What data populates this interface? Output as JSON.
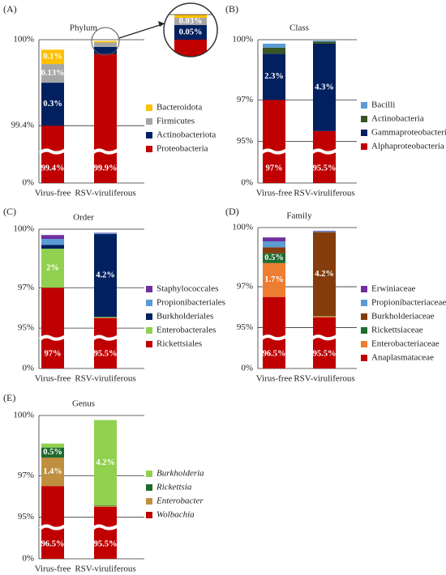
{
  "chart_data": [
    {
      "type": "bar",
      "stacked": true,
      "label": "(A)",
      "title": "Phylum",
      "categories": [
        "Virus-free",
        "RSV-viruliferous"
      ],
      "series": [
        {
          "name": "Proteobacteria",
          "color": "#c00000",
          "values": [
            99.4,
            99.9
          ],
          "value_labels": [
            "99.4%",
            "99.9%"
          ]
        },
        {
          "name": "Actinobacteriota",
          "color": "#002060",
          "values": [
            0.3,
            0.05
          ],
          "value_labels": [
            "0.3%",
            "0.05%"
          ]
        },
        {
          "name": "Firmicutes",
          "color": "#a6a6a6",
          "values": [
            0.13,
            0.03
          ],
          "value_labels": [
            "0.13%",
            "0.03%"
          ]
        },
        {
          "name": "Bacteroidota",
          "color": "#ffc000",
          "values": [
            0.1,
            0.01
          ],
          "value_labels": [
            "0.1%",
            null
          ]
        }
      ],
      "ylim": [
        0,
        100
      ],
      "yticks": [
        {
          "value": 0,
          "label": "0%"
        },
        {
          "value": 99.4,
          "label": "99.4%"
        },
        {
          "value": 100,
          "label": "100%"
        }
      ],
      "grid": true
    },
    {
      "type": "bar",
      "stacked": true,
      "label": "(B)",
      "title": "Class",
      "categories": [
        "Virus-free",
        "RSV-viruliferous"
      ],
      "series": [
        {
          "name": "Alphaproteobacteria",
          "color": "#c00000",
          "values": [
            97,
            95.5
          ],
          "value_labels": [
            "97%",
            "95.5%"
          ]
        },
        {
          "name": "Gammaproteobacteria",
          "color": "#002060",
          "values": [
            2.3,
            4.3
          ],
          "value_labels": [
            "2.3%",
            "4.3%"
          ]
        },
        {
          "name": "Actinobacteria",
          "color": "#375623",
          "values": [
            0.3,
            0.1
          ],
          "value_labels": [
            null,
            null
          ]
        },
        {
          "name": "Bacilli",
          "color": "#5b9bd5",
          "values": [
            0.2,
            0.05
          ],
          "value_labels": [
            null,
            null
          ]
        }
      ],
      "ylim": [
        0,
        100
      ],
      "yticks": [
        {
          "value": 0,
          "label": "0%"
        },
        {
          "value": 95,
          "label": "95%"
        },
        {
          "value": 97,
          "label": "97%"
        },
        {
          "value": 100,
          "label": "100%"
        }
      ],
      "grid": true
    },
    {
      "type": "bar",
      "stacked": true,
      "label": "(C)",
      "title": "Order",
      "categories": [
        "Virus-free",
        "RSV-viruliferous"
      ],
      "series": [
        {
          "name": "Rickettsiales",
          "color": "#c00000",
          "values": [
            97,
            95.5
          ],
          "value_labels": [
            "97%",
            "95.5%"
          ]
        },
        {
          "name": "Enterobacterales",
          "color": "#92d050",
          "values": [
            2,
            0.05
          ],
          "value_labels": [
            "2%",
            null
          ]
        },
        {
          "name": "Burkholderiales",
          "color": "#002060",
          "values": [
            0.2,
            4.2
          ],
          "value_labels": [
            null,
            "4.2%"
          ]
        },
        {
          "name": "Propionibacteriales",
          "color": "#5b9bd5",
          "values": [
            0.3,
            0.05
          ],
          "value_labels": [
            null,
            null
          ]
        },
        {
          "name": "Staphylococcales",
          "color": "#7030a0",
          "values": [
            0.2,
            0.02
          ],
          "value_labels": [
            null,
            null
          ]
        }
      ],
      "ylim": [
        0,
        100
      ],
      "yticks": [
        {
          "value": 0,
          "label": "0%"
        },
        {
          "value": 95,
          "label": "95%"
        },
        {
          "value": 97,
          "label": "97%"
        },
        {
          "value": 100,
          "label": "100%"
        }
      ],
      "grid": true
    },
    {
      "type": "bar",
      "stacked": true,
      "label": "(D)",
      "title": "Family",
      "categories": [
        "Virus-free",
        "RSV-viruliferous"
      ],
      "series": [
        {
          "name": "Anaplasmataceae",
          "color": "#c00000",
          "values": [
            96.5,
            95.5
          ],
          "value_labels": [
            "96.5%",
            "95.5%"
          ]
        },
        {
          "name": "Enterobacteriaceae",
          "color": "#ed7d31",
          "values": [
            1.7,
            0.05
          ],
          "value_labels": [
            "1.7%",
            null
          ]
        },
        {
          "name": "Rickettsiaceae",
          "color": "#1e6b2e",
          "values": [
            0.5,
            0.02
          ],
          "value_labels": [
            "0.5%",
            null
          ]
        },
        {
          "name": "Burkholderiaceae",
          "color": "#843c0c",
          "values": [
            0.3,
            4.2
          ],
          "value_labels": [
            null,
            "4.2%"
          ]
        },
        {
          "name": "Propionibacteriaceae",
          "color": "#5b9bd5",
          "values": [
            0.3,
            0.05
          ],
          "value_labels": [
            null,
            null
          ]
        },
        {
          "name": "Erwiniaceae",
          "color": "#7030a0",
          "values": [
            0.2,
            0.02
          ],
          "value_labels": [
            null,
            null
          ]
        }
      ],
      "ylim": [
        0,
        100
      ],
      "yticks": [
        {
          "value": 0,
          "label": "0%"
        },
        {
          "value": 95,
          "label": "95%"
        },
        {
          "value": 97,
          "label": "97%"
        },
        {
          "value": 100,
          "label": "100%"
        }
      ],
      "grid": true
    },
    {
      "type": "bar",
      "stacked": true,
      "label": "(E)",
      "title": "Genus",
      "legend_italic": true,
      "categories": [
        "Virus-free",
        "RSV-viruliferous"
      ],
      "series": [
        {
          "name": "Wolbachia",
          "color": "#c00000",
          "values": [
            96.5,
            95.5
          ],
          "value_labels": [
            "96.5%",
            "95.5%"
          ]
        },
        {
          "name": "Enterobacter",
          "color": "#bf8f3f",
          "values": [
            1.4,
            0.05
          ],
          "value_labels": [
            "1.4%",
            null
          ]
        },
        {
          "name": "Rickettsia",
          "color": "#1e6b2e",
          "values": [
            0.5,
            0.02
          ],
          "value_labels": [
            "0.5%",
            null
          ]
        },
        {
          "name": "Burkholderia",
          "color": "#92d050",
          "values": [
            0.2,
            4.2
          ],
          "value_labels": [
            null,
            "4.2%"
          ]
        }
      ],
      "ylim": [
        0,
        100
      ],
      "yticks": [
        {
          "value": 0,
          "label": "0%"
        },
        {
          "value": 95,
          "label": "95%"
        },
        {
          "value": 97,
          "label": "97%"
        },
        {
          "value": 100,
          "label": "100%"
        }
      ],
      "grid": true
    }
  ]
}
